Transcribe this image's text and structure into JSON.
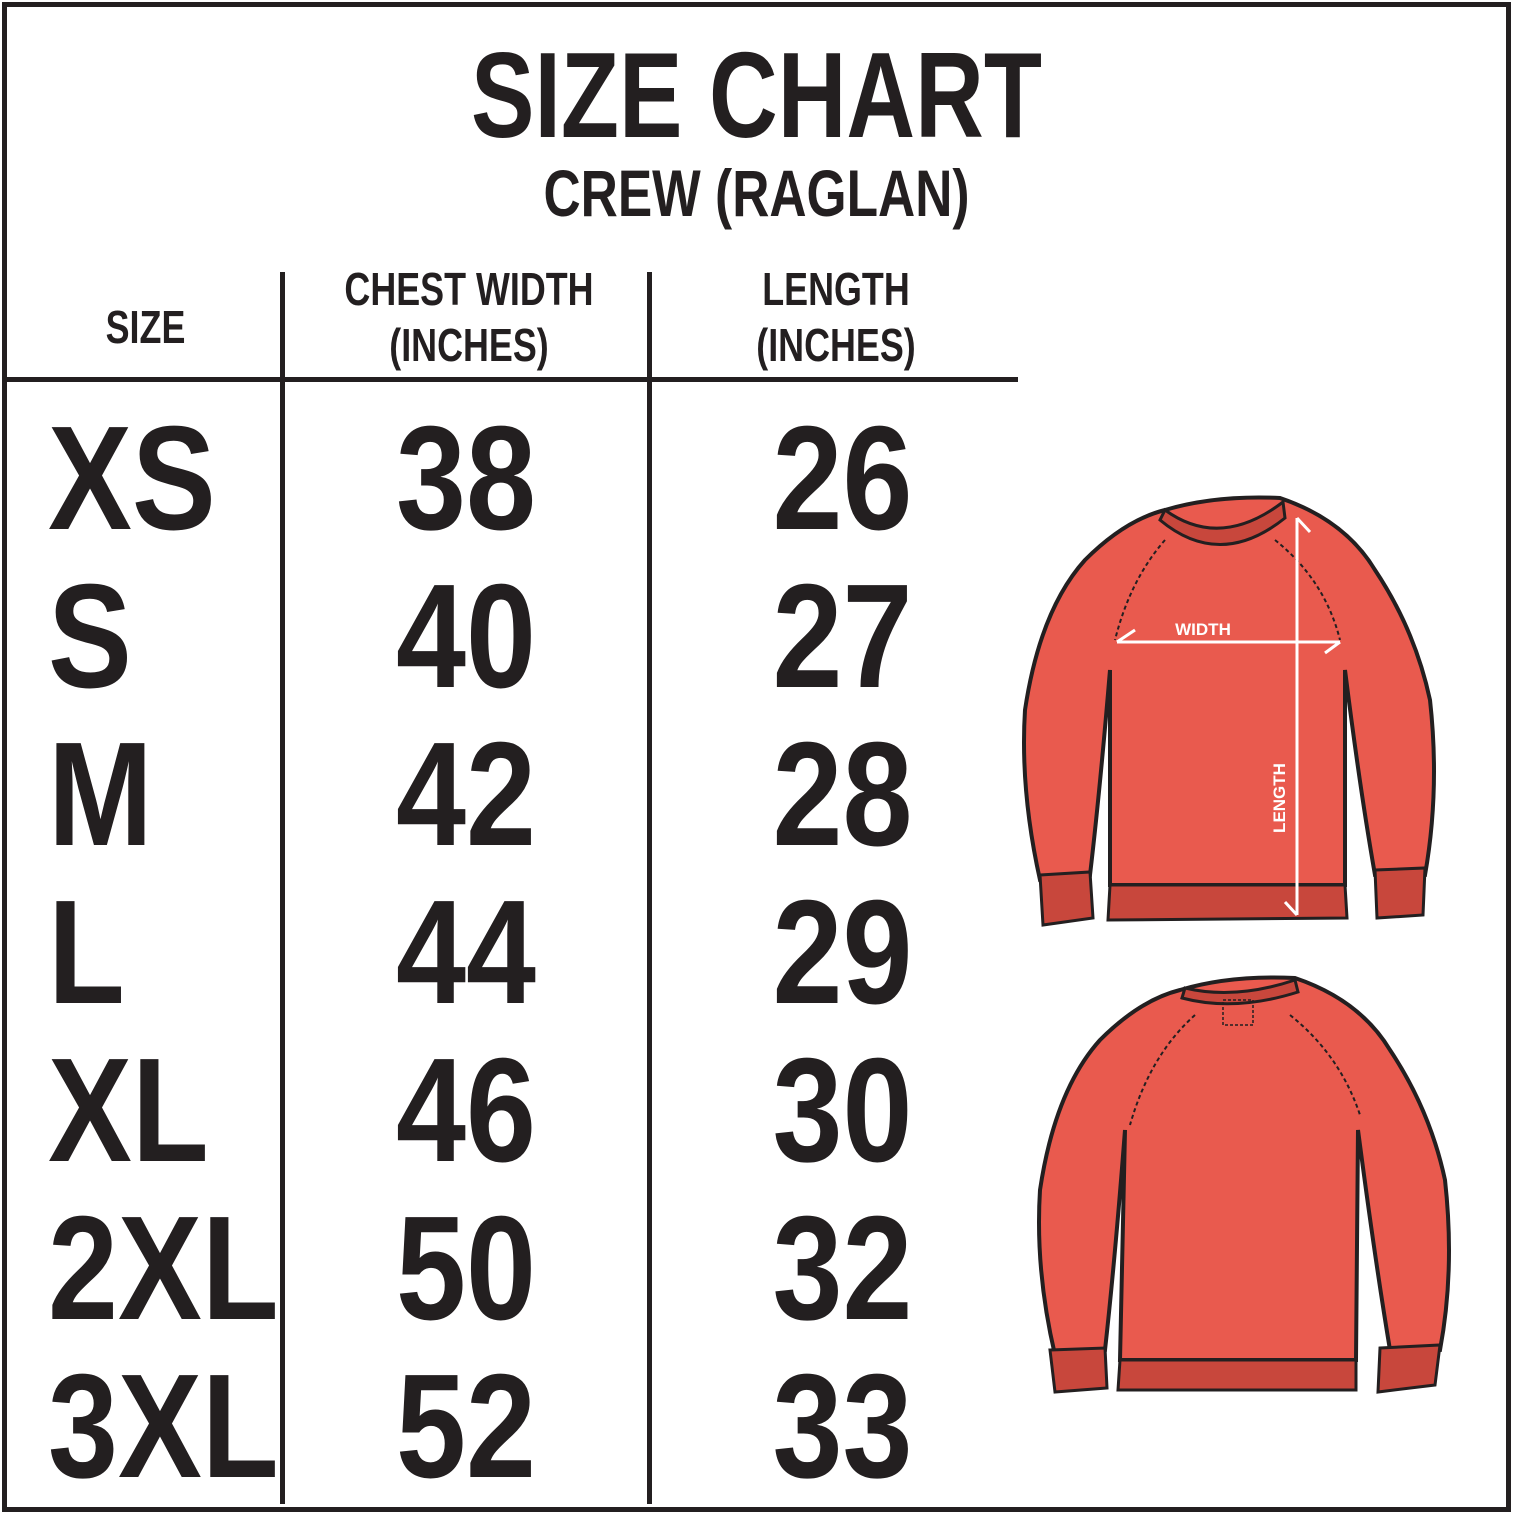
{
  "title": "SIZE CHART",
  "subtitle": "CREW (RAGLAN)",
  "headers": {
    "size": "SIZE",
    "chest_line1": "CHEST WIDTH",
    "chest_line2": "(INCHES)",
    "length_line1": "LENGTH",
    "length_line2": "(INCHES)"
  },
  "rows": [
    {
      "size": "XS",
      "chest": "38",
      "length": "26"
    },
    {
      "size": "S",
      "chest": "40",
      "length": "27"
    },
    {
      "size": "M",
      "chest": "42",
      "length": "28"
    },
    {
      "size": "L",
      "chest": "44",
      "length": "29"
    },
    {
      "size": "XL",
      "chest": "46",
      "length": "30"
    },
    {
      "size": "2XL",
      "chest": "50",
      "length": "32"
    },
    {
      "size": "3XL",
      "chest": "52",
      "length": "33"
    }
  ],
  "diagram": {
    "width_label": "WIDTH",
    "length_label": "LENGTH"
  },
  "colors": {
    "ink": "#231f20",
    "sweater": "#e95a4e",
    "ribbing": "#c8473c"
  }
}
